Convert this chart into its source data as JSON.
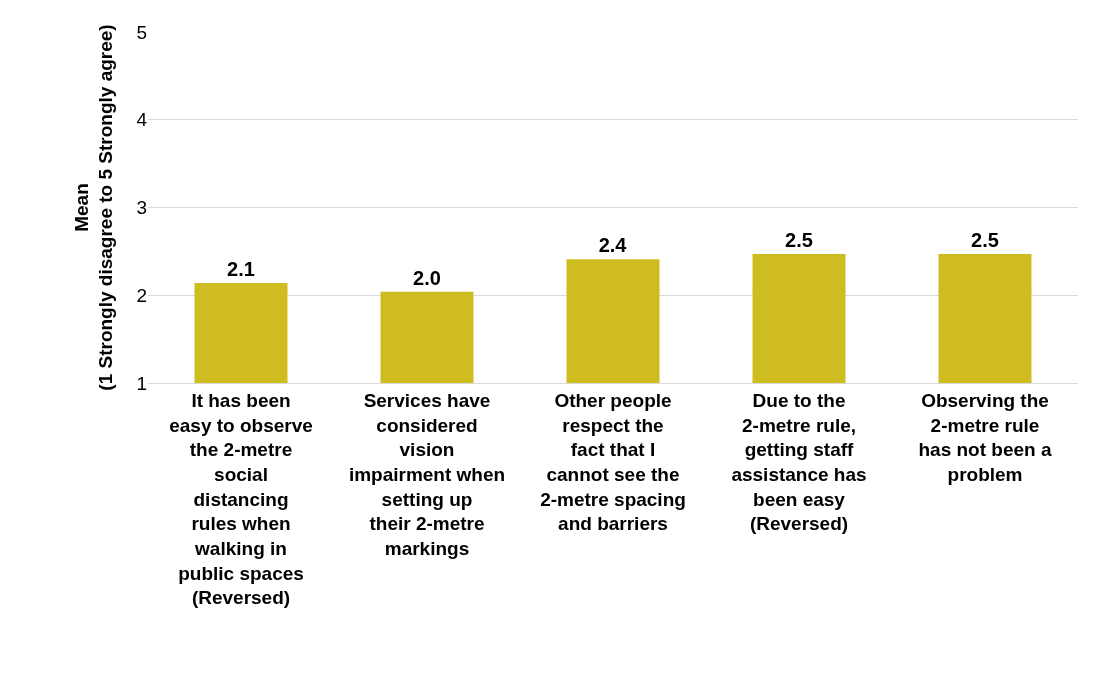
{
  "chart_data": {
    "type": "bar",
    "ylabel": "Mean\n(1 Strongly disagree to 5 Strongly agree)",
    "categories": [
      "It has been easy to observe the 2-metre social distancing rules when walking in public spaces (Reversed)",
      "Services have considered vision impairment when setting up their 2-metre markings",
      "Other people respect the fact that I cannot see the 2-metre spacing and barriers",
      "Due to the 2-metre rule, getting staff assistance has been easy (Reversed)",
      "Observing the 2-metre rule has not been a problem"
    ],
    "values": [
      2.14,
      2.04,
      2.41,
      2.47,
      2.47
    ],
    "value_labels": [
      "2.1",
      "2.0",
      "2.4",
      "2.5",
      "2.5"
    ],
    "color": "#cfbc20",
    "ylim": [
      1,
      5
    ],
    "yticks": [
      1,
      2,
      3,
      4,
      5
    ],
    "grid": "y"
  }
}
